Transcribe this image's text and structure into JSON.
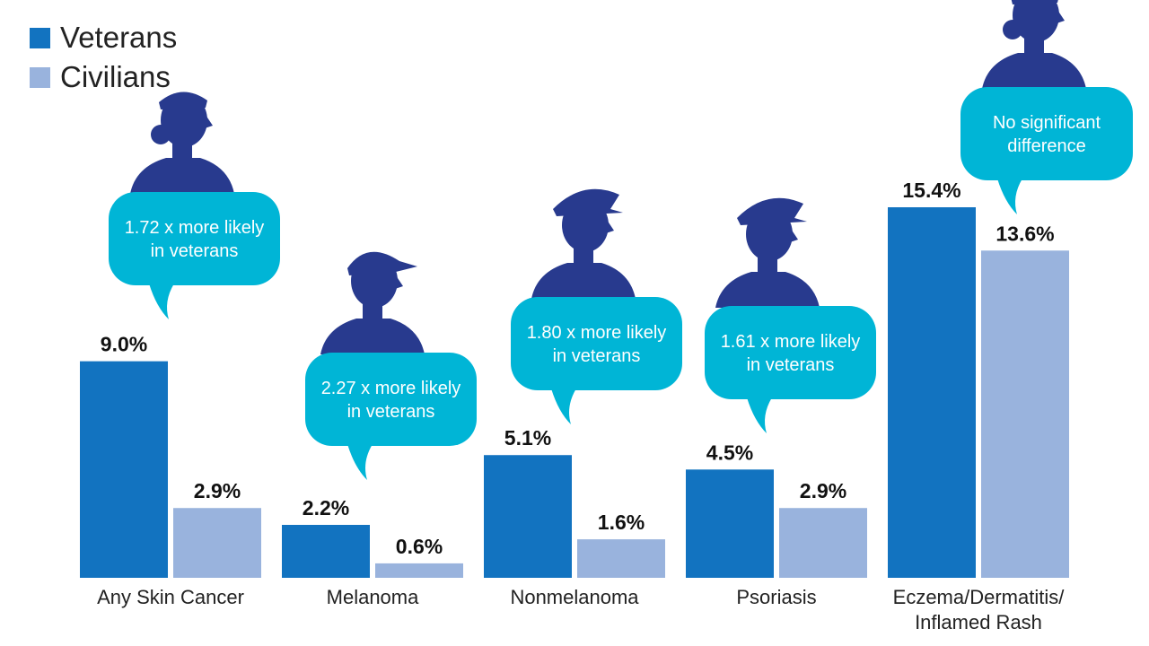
{
  "colors": {
    "veterans": "#1273c0",
    "civilians": "#99b3dd",
    "bubble": "#00b5d6",
    "figure": "#283a8e"
  },
  "chart_data": {
    "type": "bar",
    "categories": [
      [
        "Any Skin Cancer"
      ],
      [
        "Melanoma"
      ],
      [
        "Nonmelanoma"
      ],
      [
        "Psoriasis"
      ],
      [
        "Eczema/Dermatitis/",
        "Inflamed Rash"
      ]
    ],
    "series": [
      {
        "name": "Veterans",
        "values": [
          9.0,
          2.2,
          5.1,
          4.5,
          15.4
        ],
        "labels": [
          "9.0%",
          "2.2%",
          "5.1%",
          "4.5%",
          "15.4%"
        ]
      },
      {
        "name": "Civilians",
        "values": [
          2.9,
          0.6,
          1.6,
          2.9,
          13.6
        ],
        "labels": [
          "2.9%",
          "0.6%",
          "1.6%",
          "2.9%",
          "13.6%"
        ]
      }
    ],
    "ylim": [
      0,
      15.4
    ],
    "grid": false,
    "legend": "top-left",
    "annotations": [
      {
        "category": 0,
        "lines": [
          "1.72 x more likely",
          "in veterans"
        ],
        "figure": "female-soldier-icon"
      },
      {
        "category": 1,
        "lines": [
          "2.27 x more likely",
          "in veterans"
        ],
        "figure": "male-soldier-cap-icon"
      },
      {
        "category": 2,
        "lines": [
          "1.80 x more likely",
          "in veterans"
        ],
        "figure": "female-officer-icon"
      },
      {
        "category": 3,
        "lines": [
          "1.61 x more likely",
          "in veterans"
        ],
        "figure": "male-officer-icon"
      },
      {
        "category": 4,
        "lines": [
          "No significant",
          "difference"
        ],
        "figure": "female-sailor-icon"
      }
    ]
  }
}
